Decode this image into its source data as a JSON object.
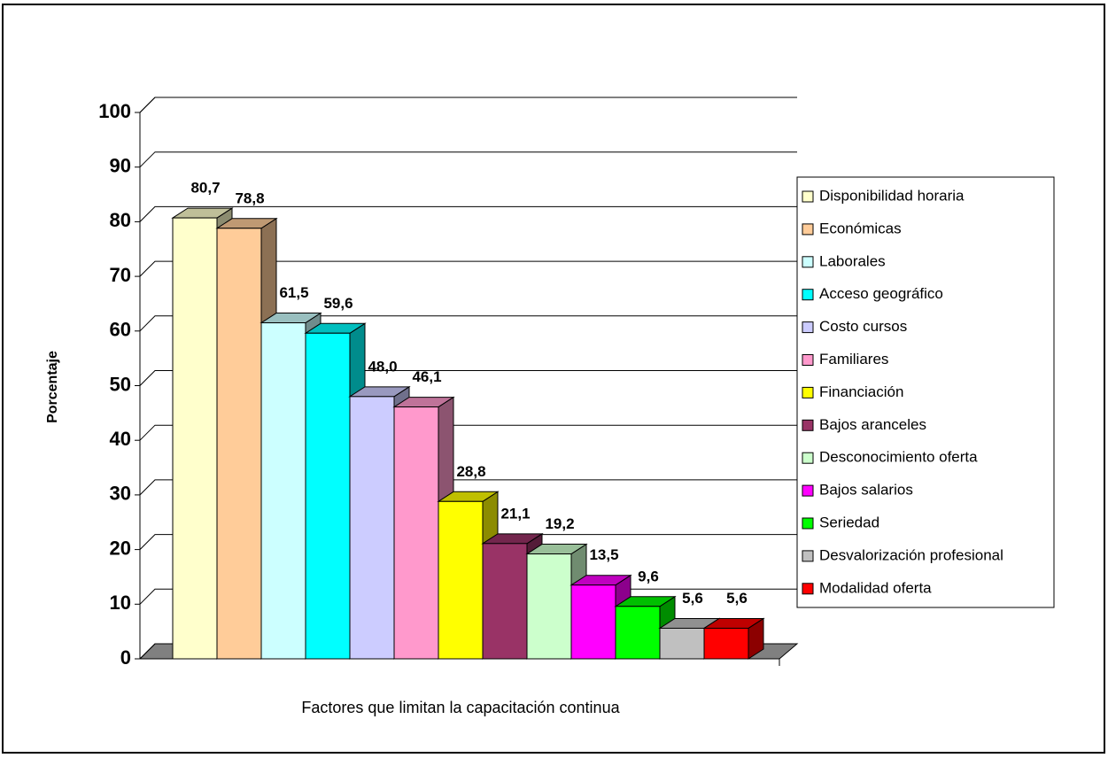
{
  "chart_data": {
    "type": "bar",
    "y_label": "Porcentaje",
    "x_label": "Factores que limitan la capacitación continua",
    "ylim": [
      0,
      100
    ],
    "yticks": [
      0,
      10,
      20,
      30,
      40,
      50,
      60,
      70,
      80,
      90,
      100
    ],
    "grid": true,
    "legend": "right",
    "series": [
      {
        "name": "Disponibilidad horaria",
        "color": "#ffffcc",
        "values": [
          80.7
        ],
        "value_labels": [
          "80,7"
        ]
      },
      {
        "name": "Económicas",
        "color": "#ffcc99",
        "values": [
          78.8
        ],
        "value_labels": [
          "78,8"
        ]
      },
      {
        "name": "Laborales",
        "color": "#ccffff",
        "values": [
          61.5
        ],
        "value_labels": [
          "61,5"
        ]
      },
      {
        "name": "Acceso geográfico",
        "color": "#00ffff",
        "values": [
          59.6
        ],
        "value_labels": [
          "59,6"
        ]
      },
      {
        "name": "Costo cursos",
        "color": "#ccccff",
        "values": [
          48.0
        ],
        "value_labels": [
          "48,0"
        ]
      },
      {
        "name": "Familiares",
        "color": "#ff99cc",
        "values": [
          46.1
        ],
        "value_labels": [
          "46,1"
        ]
      },
      {
        "name": "Financiación",
        "color": "#ffff00",
        "values": [
          28.8
        ],
        "value_labels": [
          "28,8"
        ]
      },
      {
        "name": "Bajos aranceles",
        "color": "#993366",
        "values": [
          21.1
        ],
        "value_labels": [
          "21,1"
        ]
      },
      {
        "name": "Desconocimiento oferta",
        "color": "#ccffcc",
        "values": [
          19.2
        ],
        "value_labels": [
          "19,2"
        ]
      },
      {
        "name": "Bajos salarios",
        "color": "#ff00ff",
        "values": [
          13.5
        ],
        "value_labels": [
          "13,5"
        ]
      },
      {
        "name": "Seriedad",
        "color": "#00ff00",
        "values": [
          9.6
        ],
        "value_labels": [
          "9,6"
        ]
      },
      {
        "name": "Desvalorización profesional",
        "color": "#c0c0c0",
        "values": [
          5.6
        ],
        "value_labels": [
          "5,6"
        ]
      },
      {
        "name": "Modalidad oferta",
        "color": "#ff0000",
        "values": [
          5.6
        ],
        "value_labels": [
          "5,6"
        ]
      }
    ]
  }
}
